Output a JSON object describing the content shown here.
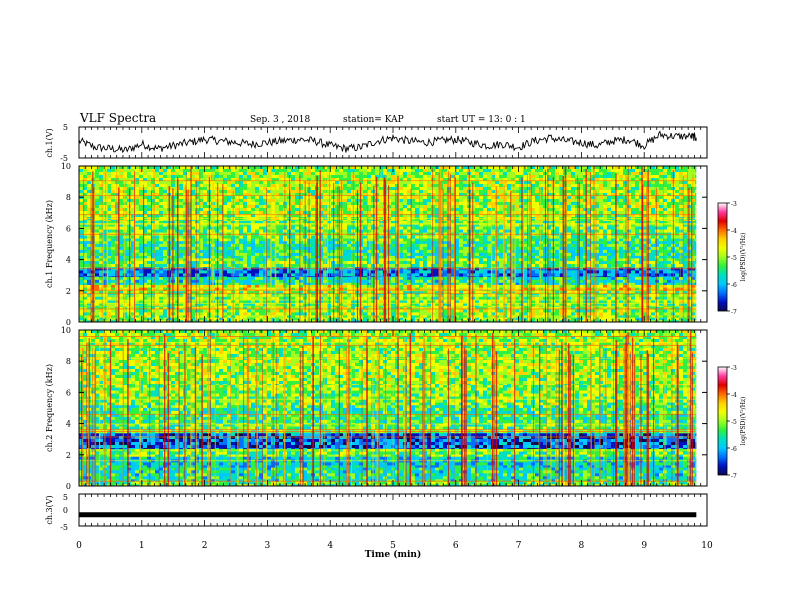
{
  "header": {
    "title": "VLF Spectra",
    "date": "Sep. 3 , 2018",
    "station": "station= KAP",
    "start": "start UT = 13: 0 : 1"
  },
  "colors": {
    "colormap": [
      "#ffffff",
      "#ff3aa0",
      "#e00000",
      "#ff6a00",
      "#ffd000",
      "#f0ff00",
      "#a0ff20",
      "#30f040",
      "#00e0c0",
      "#00c8ff",
      "#0070ff",
      "#0010c0",
      "#0a0a50"
    ],
    "trace": "#000000"
  },
  "chart_data": [
    {
      "type": "line",
      "panel": "ch1-waveform",
      "ylabel": "ch.1(V)",
      "ylim": [
        -5,
        5
      ],
      "yticks": [
        5,
        -5
      ],
      "x": [
        0,
        0.25,
        0.5,
        0.75,
        1.0,
        1.25,
        1.5,
        1.75,
        2.0,
        2.25,
        2.5,
        2.75,
        3.0,
        3.25,
        3.5,
        3.75,
        4.0,
        4.25,
        4.5,
        4.75,
        5.0,
        5.25,
        5.5,
        5.75,
        6.0,
        6.25,
        6.5,
        6.75,
        7.0,
        7.25,
        7.5,
        7.75,
        8.0,
        8.25,
        8.5,
        8.75,
        9.0,
        9.25,
        9.5,
        9.75,
        9.83
      ],
      "y": [
        0.5,
        -1.5,
        -2.0,
        -2.5,
        -0.5,
        -2.0,
        -1.0,
        0.0,
        1.0,
        0.5,
        0.0,
        -0.5,
        0.0,
        0.5,
        1.0,
        0.5,
        -1.0,
        -2.0,
        -1.5,
        0.5,
        1.5,
        0.5,
        0.0,
        0.5,
        1.0,
        0.0,
        -1.0,
        -0.5,
        -1.5,
        0.5,
        1.5,
        0.5,
        0.0,
        -1.0,
        0.5,
        1.0,
        -1.0,
        2.5,
        2.0,
        2.0,
        1.5
      ]
    },
    {
      "type": "heatmap",
      "panel": "ch1-spectrogram",
      "ylabel": "ch.1 Frequency (kHz)",
      "ylim": [
        0,
        10
      ],
      "yticks": [
        0,
        2,
        4,
        6,
        8,
        10
      ],
      "xlim": [
        0,
        9.83
      ],
      "colorbar": {
        "label": "log(PSD)(V²/Hz)",
        "range": [
          -7,
          -3
        ],
        "ticks": [
          -3,
          -4,
          -5,
          -6,
          -7
        ]
      },
      "bands": [
        {
          "f": [
            0,
            0.3
          ],
          "level": -5.2
        },
        {
          "f": [
            0.3,
            1.0
          ],
          "level": -5.0
        },
        {
          "f": [
            1.0,
            2.0
          ],
          "level": -5.1
        },
        {
          "f": [
            2.0,
            2.4
          ],
          "level": -4.7
        },
        {
          "f": [
            2.4,
            2.9
          ],
          "level": -5.6
        },
        {
          "f": [
            2.9,
            3.5
          ],
          "level": -6.2
        },
        {
          "f": [
            3.5,
            4.1
          ],
          "level": -5.2
        },
        {
          "f": [
            4.1,
            5.2
          ],
          "level": -5.5
        },
        {
          "f": [
            5.2,
            6.5
          ],
          "level": -5.2
        },
        {
          "f": [
            6.5,
            10.0
          ],
          "level": -5.0
        }
      ]
    },
    {
      "type": "heatmap",
      "panel": "ch2-spectrogram",
      "ylabel": "ch.2 Frequency (kHz)",
      "ylim": [
        0,
        10
      ],
      "yticks": [
        0,
        2,
        4,
        6,
        8,
        10
      ],
      "xlim": [
        0,
        9.83
      ],
      "colorbar": {
        "label": "log(PSD)(V²/Hz)",
        "range": [
          -7,
          -3
        ],
        "ticks": [
          -3,
          -4,
          -5,
          -6,
          -7
        ]
      },
      "bands": [
        {
          "f": [
            0,
            0.3
          ],
          "level": -5.3
        },
        {
          "f": [
            0.3,
            1.2
          ],
          "level": -5.6
        },
        {
          "f": [
            1.2,
            1.9
          ],
          "level": -5.8
        },
        {
          "f": [
            1.9,
            2.4
          ],
          "level": -5.2
        },
        {
          "f": [
            2.4,
            3.4
          ],
          "level": -6.4
        },
        {
          "f": [
            3.4,
            4.0
          ],
          "level": -5.3
        },
        {
          "f": [
            4.0,
            5.2
          ],
          "level": -5.4
        },
        {
          "f": [
            5.2,
            6.5
          ],
          "level": -5.1
        },
        {
          "f": [
            6.5,
            10.0
          ],
          "level": -5.0
        }
      ]
    },
    {
      "type": "line",
      "panel": "ch3-waveform",
      "ylabel": "ch.3(V)",
      "ylim": [
        -5,
        5
      ],
      "yticks": [
        5,
        0,
        -5
      ],
      "x": [
        0,
        9.83
      ],
      "y": [
        -1.5,
        -1.5
      ]
    }
  ],
  "xaxis": {
    "label": "Time (min)",
    "range": [
      0,
      10
    ],
    "ticks": [
      "0",
      "1",
      "2",
      "3",
      "4",
      "5",
      "6",
      "7",
      "8",
      "9",
      "10"
    ]
  }
}
